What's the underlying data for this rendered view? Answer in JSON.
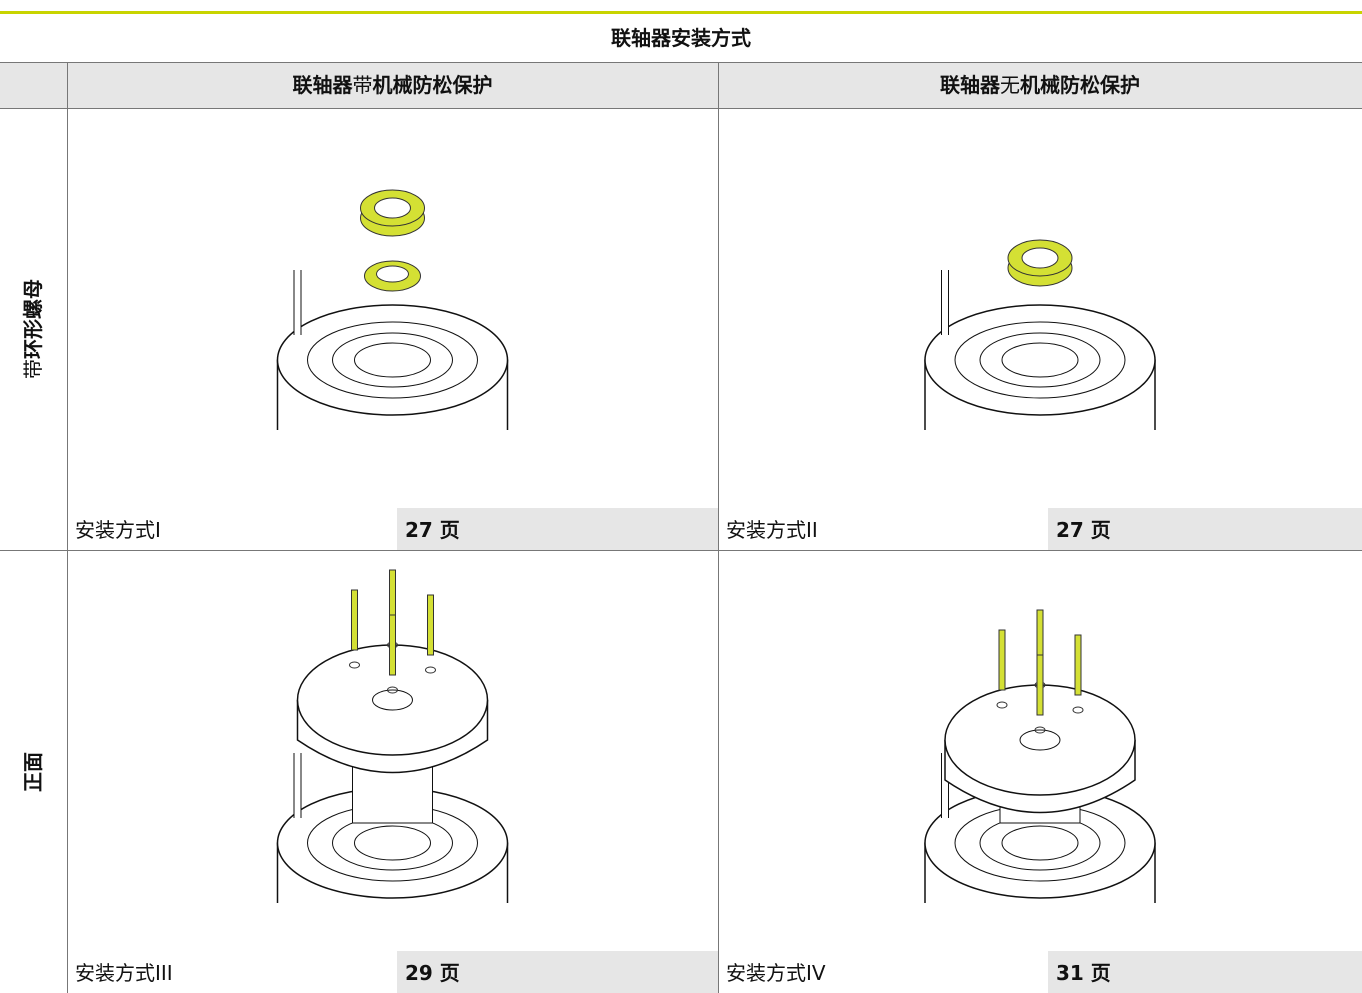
{
  "title": "联轴器安装方式",
  "columns": [
    {
      "parts": [
        {
          "text": "联轴器",
          "bold": true
        },
        {
          "text": "带",
          "bold": false
        },
        {
          "text": "机械防松保护",
          "bold": true
        }
      ]
    },
    {
      "parts": [
        {
          "text": "联轴器",
          "bold": true
        },
        {
          "text": "无",
          "bold": false
        },
        {
          "text": "机械防松保护",
          "bold": true
        }
      ]
    }
  ],
  "rows": [
    {
      "label_parts": [
        {
          "text": "带",
          "bold": false
        },
        {
          "text": "环形螺母",
          "bold": true
        }
      ],
      "cells": [
        {
          "caption": "安装方式I",
          "page": "27 页"
        },
        {
          "caption": "安装方式II",
          "page": "27 页"
        }
      ]
    },
    {
      "label_parts": [
        {
          "text": "正面",
          "bold": true
        }
      ],
      "cells": [
        {
          "caption": "安装方式III",
          "page": "29 页"
        },
        {
          "caption": "安装方式IV",
          "page": "31 页"
        }
      ]
    }
  ]
}
